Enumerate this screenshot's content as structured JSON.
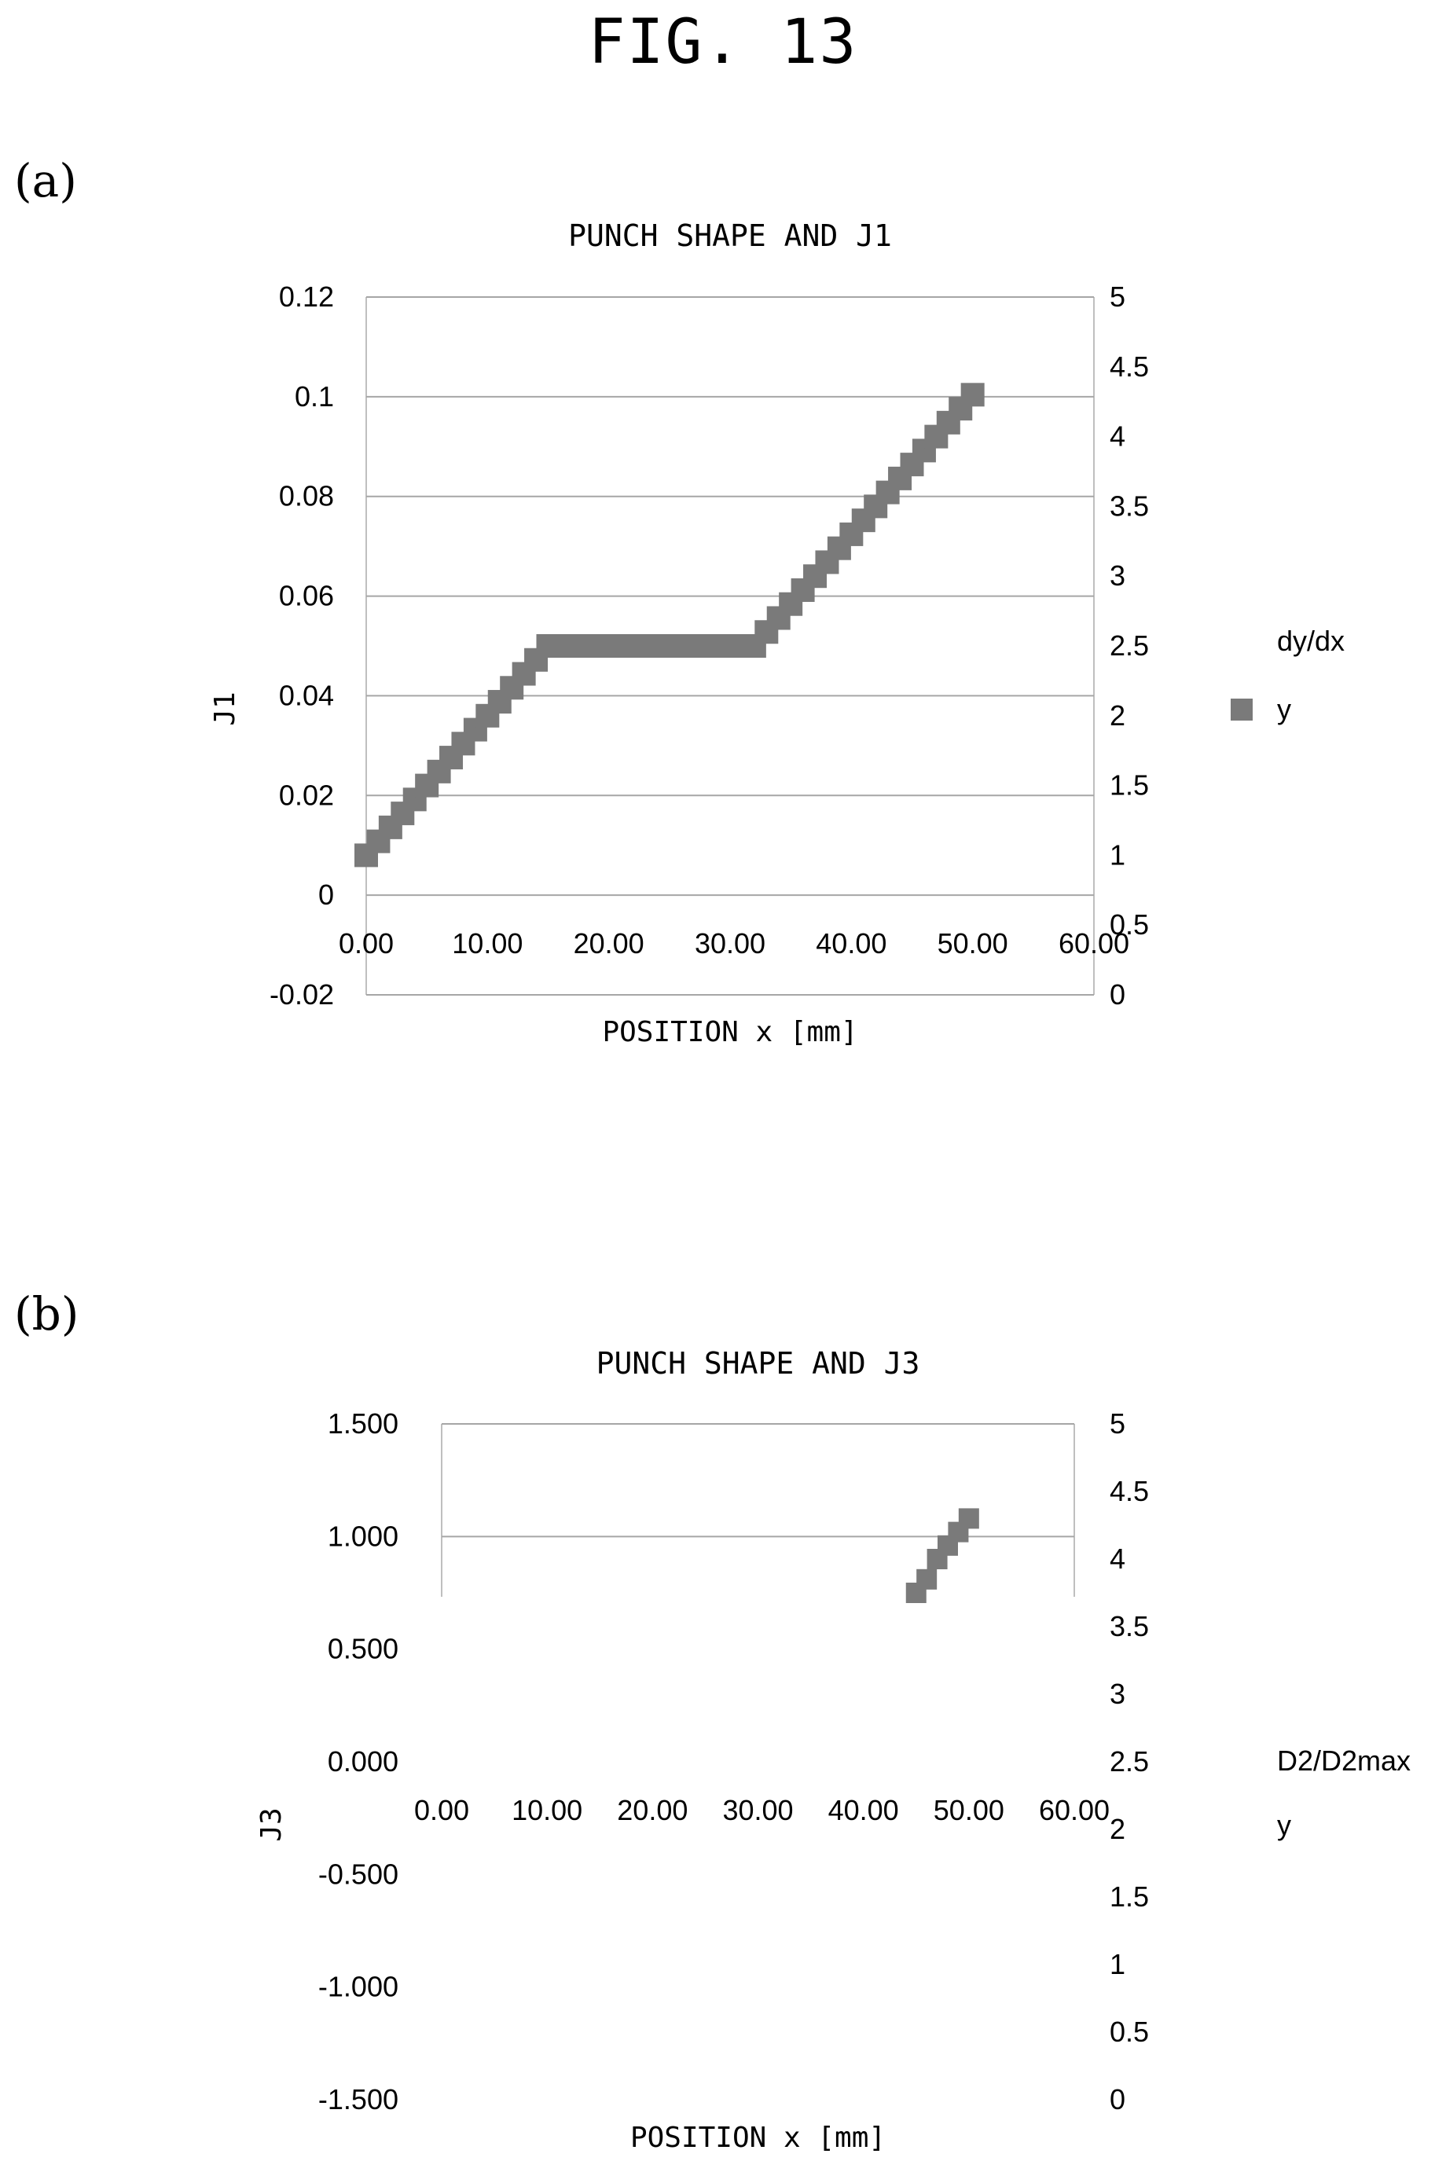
{
  "figure": {
    "title": "FIG. 13"
  },
  "chart_data": [
    {
      "panel": "(a)",
      "type": "scatter",
      "title": "PUNCH SHAPE AND J1",
      "xlabel": "POSITION x [mm]",
      "ylabel": "J1",
      "x_ticks": [
        "0.00",
        "10.00",
        "20.00",
        "30.00",
        "40.00",
        "50.00",
        "60.00"
      ],
      "y_ticks": [
        "0.12",
        "0.1",
        "0.08",
        "0.06",
        "0.04",
        "0.02",
        "0",
        "-0.02"
      ],
      "y2_ticks": [
        "5",
        "4.5",
        "4",
        "3.5",
        "3",
        "2.5",
        "2",
        "1.5",
        "1",
        "0.5",
        "0"
      ],
      "xlim": [
        0,
        60
      ],
      "ylim": [
        -0.02,
        0.12
      ],
      "y2lim": [
        0,
        5
      ],
      "grid": true,
      "legend_position": "right",
      "legend": [
        {
          "label": "dy/dx",
          "marker": "none"
        },
        {
          "label": "y",
          "marker": "square"
        }
      ],
      "series": [
        {
          "name": "y",
          "axis": "secondary",
          "marker": "square",
          "color": "#7a7a7a",
          "x": [
            0,
            1,
            2,
            3,
            4,
            5,
            6,
            7,
            8,
            9,
            10,
            11,
            12,
            13,
            14,
            15,
            16,
            17,
            18,
            19,
            20,
            21,
            22,
            23,
            24,
            25,
            26,
            27,
            28,
            29,
            30,
            31,
            32,
            33,
            34,
            35,
            36,
            37,
            38,
            39,
            40,
            41,
            42,
            43,
            44,
            45,
            46,
            47,
            48,
            49,
            50
          ],
          "y": [
            1.0,
            1.1,
            1.2,
            1.3,
            1.4,
            1.5,
            1.6,
            1.7,
            1.8,
            1.9,
            2.0,
            2.1,
            2.2,
            2.3,
            2.4,
            2.5,
            2.5,
            2.5,
            2.5,
            2.5,
            2.5,
            2.5,
            2.5,
            2.5,
            2.5,
            2.5,
            2.5,
            2.5,
            2.5,
            2.5,
            2.5,
            2.5,
            2.5,
            2.6,
            2.7,
            2.8,
            2.9,
            3.0,
            3.1,
            3.2,
            3.3,
            3.4,
            3.5,
            3.6,
            3.7,
            3.8,
            3.9,
            4.0,
            4.1,
            4.2,
            4.3
          ]
        }
      ]
    },
    {
      "panel": "(b)",
      "type": "scatter",
      "title": "PUNCH SHAPE AND J3",
      "xlabel": "POSITION x [mm]",
      "ylabel": "J3",
      "x_ticks": [
        "0.00",
        "10.00",
        "20.00",
        "30.00",
        "40.00",
        "50.00",
        "60.00"
      ],
      "y_ticks": [
        "1.500",
        "1.000",
        "0.500",
        "0.000",
        "-0.500",
        "-1.000",
        "-1.500"
      ],
      "y2_ticks": [
        "5",
        "4.5",
        "4",
        "3.5",
        "3",
        "2.5",
        "2",
        "1.5",
        "1",
        "0.5",
        "0"
      ],
      "xlim": [
        0,
        60
      ],
      "ylim": [
        -1.5,
        1.5
      ],
      "y2lim": [
        0,
        5
      ],
      "grid": true,
      "legend_position": "right",
      "legend": [
        {
          "label": "D2/D2max",
          "marker": "none"
        },
        {
          "label": "y",
          "marker": "none"
        }
      ],
      "series": [
        {
          "name": "y",
          "axis": "secondary",
          "marker": "square",
          "color": "#7a7a7a",
          "x": [
            45,
            46,
            47,
            48,
            49,
            50
          ],
          "y": [
            3.75,
            3.85,
            4.0,
            4.1,
            4.2,
            4.3
          ]
        }
      ]
    }
  ]
}
